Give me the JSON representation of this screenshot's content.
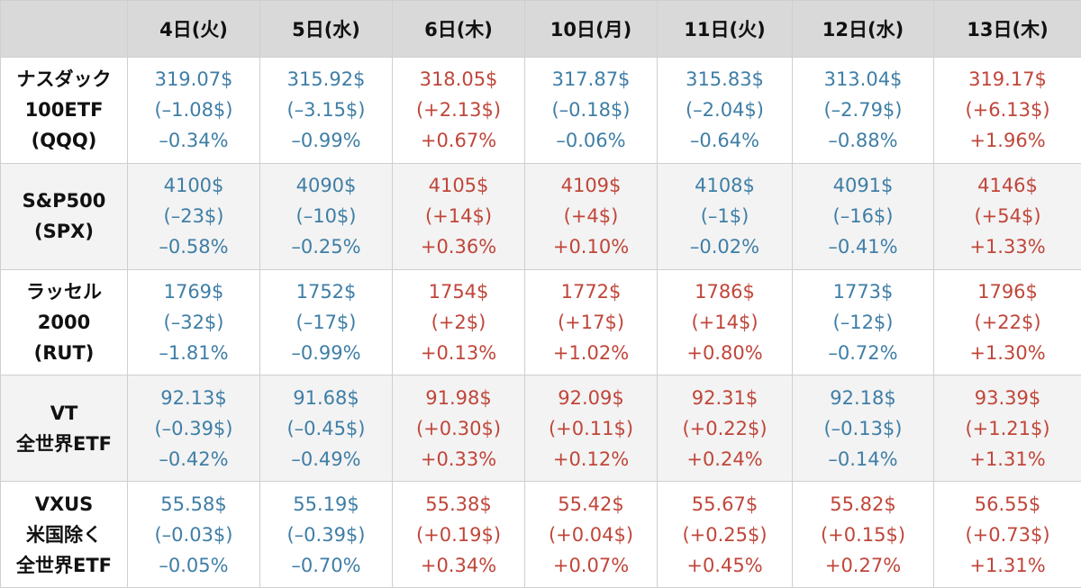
{
  "chart_data": {
    "type": "table",
    "columns": [
      "4日(火)",
      "5日(水)",
      "6日(木)",
      "10日(月)",
      "11日(火)",
      "12日(水)",
      "13日(木)"
    ],
    "colors": {
      "up": "#c0463a",
      "down": "#3f7ea6"
    },
    "rows": [
      {
        "label": [
          "ナスダック",
          "100ETF",
          "(QQQ)"
        ],
        "cells": [
          {
            "dir": "down",
            "price": "319.07$",
            "change": "(–1.08$)",
            "pct": "–0.34%"
          },
          {
            "dir": "down",
            "price": "315.92$",
            "change": "(–3.15$)",
            "pct": "–0.99%"
          },
          {
            "dir": "up",
            "price": "318.05$",
            "change": "(+2.13$)",
            "pct": "+0.67%"
          },
          {
            "dir": "down",
            "price": "317.87$",
            "change": "(–0.18$)",
            "pct": "–0.06%"
          },
          {
            "dir": "down",
            "price": "315.83$",
            "change": "(–2.04$)",
            "pct": "–0.64%"
          },
          {
            "dir": "down",
            "price": "313.04$",
            "change": "(–2.79$)",
            "pct": "–0.88%"
          },
          {
            "dir": "up",
            "price": "319.17$",
            "change": "(+6.13$)",
            "pct": "+1.96%"
          }
        ]
      },
      {
        "label": [
          "S&P500",
          "(SPX)"
        ],
        "cells": [
          {
            "dir": "down",
            "price": "4100$",
            "change": "(–23$)",
            "pct": "–0.58%"
          },
          {
            "dir": "down",
            "price": "4090$",
            "change": "(–10$)",
            "pct": "–0.25%"
          },
          {
            "dir": "up",
            "price": "4105$",
            "change": "(+14$)",
            "pct": "+0.36%"
          },
          {
            "dir": "up",
            "price": "4109$",
            "change": "(+4$)",
            "pct": "+0.10%"
          },
          {
            "dir": "down",
            "price": "4108$",
            "change": "(–1$)",
            "pct": "–0.02%"
          },
          {
            "dir": "down",
            "price": "4091$",
            "change": "(–16$)",
            "pct": "–0.41%"
          },
          {
            "dir": "up",
            "price": "4146$",
            "change": "(+54$)",
            "pct": "+1.33%"
          }
        ]
      },
      {
        "label": [
          "ラッセル",
          "2000",
          "(RUT)"
        ],
        "cells": [
          {
            "dir": "down",
            "price": "1769$",
            "change": "(–32$)",
            "pct": "–1.81%"
          },
          {
            "dir": "down",
            "price": "1752$",
            "change": "(–17$)",
            "pct": "–0.99%"
          },
          {
            "dir": "up",
            "price": "1754$",
            "change": "(+2$)",
            "pct": "+0.13%"
          },
          {
            "dir": "up",
            "price": "1772$",
            "change": "(+17$)",
            "pct": "+1.02%"
          },
          {
            "dir": "up",
            "price": "1786$",
            "change": "(+14$)",
            "pct": "+0.80%"
          },
          {
            "dir": "down",
            "price": "1773$",
            "change": "(–12$)",
            "pct": "–0.72%"
          },
          {
            "dir": "up",
            "price": "1796$",
            "change": "(+22$)",
            "pct": "+1.30%"
          }
        ]
      },
      {
        "label": [
          "VT",
          "全世界ETF"
        ],
        "cells": [
          {
            "dir": "down",
            "price": "92.13$",
            "change": "(–0.39$)",
            "pct": "–0.42%"
          },
          {
            "dir": "down",
            "price": "91.68$",
            "change": "(–0.45$)",
            "pct": "–0.49%"
          },
          {
            "dir": "up",
            "price": "91.98$",
            "change": "(+0.30$)",
            "pct": "+0.33%"
          },
          {
            "dir": "up",
            "price": "92.09$",
            "change": "(+0.11$)",
            "pct": "+0.12%"
          },
          {
            "dir": "up",
            "price": "92.31$",
            "change": "(+0.22$)",
            "pct": "+0.24%"
          },
          {
            "dir": "down",
            "price": "92.18$",
            "change": "(–0.13$)",
            "pct": "–0.14%"
          },
          {
            "dir": "up",
            "price": "93.39$",
            "change": "(+1.21$)",
            "pct": "+1.31%"
          }
        ]
      },
      {
        "label": [
          "VXUS",
          "米国除く",
          "全世界ETF"
        ],
        "cells": [
          {
            "dir": "down",
            "price": "55.58$",
            "change": "(–0.03$)",
            "pct": "–0.05%"
          },
          {
            "dir": "down",
            "price": "55.19$",
            "change": "(–0.39$)",
            "pct": "–0.70%"
          },
          {
            "dir": "up",
            "price": "55.38$",
            "change": "(+0.19$)",
            "pct": "+0.34%"
          },
          {
            "dir": "up",
            "price": "55.42$",
            "change": "(+0.04$)",
            "pct": "+0.07%"
          },
          {
            "dir": "up",
            "price": "55.67$",
            "change": "(+0.25$)",
            "pct": "+0.45%"
          },
          {
            "dir": "up",
            "price": "55.82$",
            "change": "(+0.15$)",
            "pct": "+0.27%"
          },
          {
            "dir": "up",
            "price": "56.55$",
            "change": "(+0.73$)",
            "pct": "+1.31%"
          }
        ]
      }
    ]
  }
}
